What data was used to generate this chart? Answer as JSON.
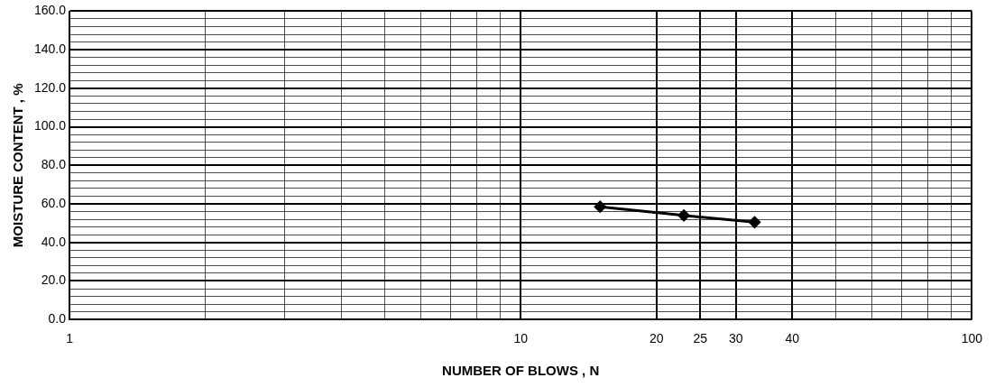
{
  "chart_data": {
    "type": "line",
    "xlabel": "NUMBER OF BLOWS , N",
    "ylabel": "MOISTURE CONTENT , %",
    "log": "x",
    "grid": true,
    "legend": false,
    "marker": "diamond",
    "line_style": "solid",
    "x": [
      15,
      23,
      33
    ],
    "series": [
      {
        "color": "#000000",
        "values": [
          58.5,
          54,
          50.5
        ]
      }
    ],
    "xlim": [
      1,
      100
    ],
    "xticks": [
      1,
      {
        "value": 2,
        "label": null
      },
      {
        "value": 3,
        "label": null
      },
      {
        "value": 4,
        "label": null
      },
      {
        "value": 5,
        "label": null
      },
      {
        "value": 6,
        "label": null
      },
      {
        "value": 7,
        "label": null
      },
      {
        "value": 8,
        "label": null
      },
      {
        "value": 9,
        "label": null
      },
      10,
      20,
      25,
      30,
      40,
      {
        "value": 50,
        "label": null
      },
      {
        "value": 60,
        "label": null
      },
      {
        "value": 70,
        "label": null
      },
      {
        "value": 80,
        "label": null
      },
      {
        "value": 90,
        "label": null
      },
      100
    ],
    "ylim": [
      0,
      160
    ],
    "yticks": [
      {
        "value": 0,
        "label": "0.0"
      },
      {
        "value": 4,
        "label": null
      },
      {
        "value": 8,
        "label": null
      },
      {
        "value": 12,
        "label": null
      },
      {
        "value": 16,
        "label": null
      },
      {
        "value": 20,
        "label": "20.0"
      },
      {
        "value": 24,
        "label": null
      },
      {
        "value": 28,
        "label": null
      },
      {
        "value": 32,
        "label": null
      },
      {
        "value": 36,
        "label": null
      },
      {
        "value": 40,
        "label": "40.0"
      },
      {
        "value": 44,
        "label": null
      },
      {
        "value": 48,
        "label": null
      },
      {
        "value": 52,
        "label": null
      },
      {
        "value": 56,
        "label": null
      },
      {
        "value": 60,
        "label": "60.0"
      },
      {
        "value": 64,
        "label": null
      },
      {
        "value": 68,
        "label": null
      },
      {
        "value": 72,
        "label": null
      },
      {
        "value": 76,
        "label": null
      },
      {
        "value": 80,
        "label": "80.0"
      },
      {
        "value": 84,
        "label": null
      },
      {
        "value": 88,
        "label": null
      },
      {
        "value": 92,
        "label": null
      },
      {
        "value": 96,
        "label": null
      },
      {
        "value": 100,
        "label": "100.0"
      },
      {
        "value": 104,
        "label": null
      },
      {
        "value": 108,
        "label": null
      },
      {
        "value": 112,
        "label": null
      },
      {
        "value": 116,
        "label": null
      },
      {
        "value": 120,
        "label": "120.0"
      },
      {
        "value": 124,
        "label": null
      },
      {
        "value": 128,
        "label": null
      },
      {
        "value": 132,
        "label": null
      },
      {
        "value": 136,
        "label": null
      },
      {
        "value": 140,
        "label": "140.0"
      },
      {
        "value": 144,
        "label": null
      },
      {
        "value": 148,
        "label": null
      },
      {
        "value": 152,
        "label": null
      },
      {
        "value": 156,
        "label": null
      },
      {
        "value": 160,
        "label": "160.0"
      }
    ]
  }
}
